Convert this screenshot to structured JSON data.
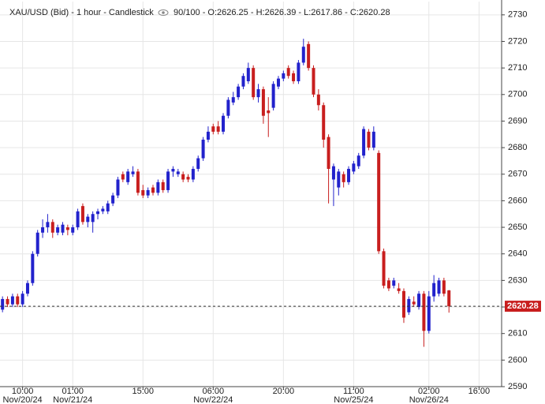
{
  "chart_data": {
    "type": "candlestick",
    "title": "XAU/USD (Bid) - 1 hour - Candlestick",
    "info": "90/100 - O:2626.25 - H:2626.39 - L:2617.86 - C:2620.28",
    "categories": [
      null,
      null,
      null,
      null,
      "10:00",
      null,
      null,
      null,
      null,
      null,
      null,
      null,
      null,
      null,
      "01:00",
      null,
      null,
      null,
      null,
      null,
      null,
      null,
      null,
      null,
      null,
      null,
      null,
      null,
      "15:00",
      null,
      null,
      null,
      null,
      null,
      null,
      null,
      null,
      null,
      null,
      null,
      null,
      null,
      "06:00",
      null,
      null,
      null,
      null,
      null,
      null,
      null,
      null,
      null,
      null,
      null,
      null,
      null,
      "20:00",
      null,
      null,
      null,
      null,
      null,
      null,
      null,
      null,
      null,
      null,
      null,
      null,
      null,
      "11:00",
      null,
      null,
      null,
      null,
      null,
      null,
      null,
      null,
      null,
      null,
      null,
      null,
      null,
      null,
      "02:00",
      null,
      null,
      null,
      null,
      null,
      null,
      null,
      null,
      null,
      "16:00",
      null,
      null,
      null,
      null
    ],
    "category_dates": [
      null,
      null,
      null,
      null,
      "Nov/20/24",
      null,
      null,
      null,
      null,
      null,
      null,
      null,
      null,
      null,
      "Nov/21/24",
      null,
      null,
      null,
      null,
      null,
      null,
      null,
      null,
      null,
      null,
      null,
      null,
      null,
      null,
      null,
      null,
      null,
      null,
      null,
      null,
      null,
      null,
      null,
      null,
      null,
      null,
      null,
      "Nov/22/24",
      null,
      null,
      null,
      null,
      null,
      null,
      null,
      null,
      null,
      null,
      null,
      null,
      null,
      null,
      null,
      null,
      null,
      null,
      null,
      null,
      null,
      null,
      null,
      null,
      null,
      null,
      null,
      "Nov/25/24",
      null,
      null,
      null,
      null,
      null,
      null,
      null,
      null,
      null,
      null,
      null,
      null,
      null,
      null,
      "Nov/26/24",
      null,
      null,
      null,
      null,
      null,
      null,
      null,
      null,
      null,
      null,
      null,
      null,
      null,
      null
    ],
    "open": [
      2619,
      2623,
      2621,
      2624,
      2621,
      2625,
      2629,
      2640,
      2648,
      2650,
      2652,
      2648,
      2648,
      2650,
      2648,
      2650,
      2658,
      2652,
      2652,
      2655,
      2656,
      2656,
      2659,
      2662,
      2670,
      2667,
      2670,
      2671,
      2664,
      2662,
      2665,
      2663,
      2667,
      2664,
      2671,
      2670,
      2670,
      2669,
      2668,
      2672,
      2676,
      2683,
      2688,
      2688,
      2686,
      2692,
      2697,
      2699,
      2703,
      2705,
      2710,
      2699,
      2702,
      2694,
      2695,
      2703,
      2706,
      2710,
      2708,
      2705,
      2712,
      2719,
      2710,
      2700,
      2696,
      2684,
      2668,
      2665,
      2670,
      2667,
      2671,
      2673,
      2677,
      2686,
      2680,
      2678,
      2641,
      2630,
      2628,
      2627,
      2626,
      2618,
      2622,
      2620,
      2625,
      2611,
      2624,
      2625,
      2630,
      2626.25,
      null,
      null,
      null,
      null,
      null,
      null,
      null,
      null,
      null,
      null
    ],
    "high": [
      2624,
      2624,
      2625,
      2625,
      2626,
      2630,
      2641,
      2649,
      2653,
      2655,
      2653,
      2651,
      2652,
      2651,
      2651,
      2657,
      2659,
      2655,
      2656,
      2657,
      2658,
      2660,
      2663,
      2669,
      2671,
      2672,
      2673,
      2672,
      2666,
      2665,
      2666,
      2668,
      2668,
      2672,
      2673,
      2672,
      2671,
      2670,
      2673,
      2677,
      2684,
      2688,
      2689,
      2690,
      2693,
      2699,
      2701,
      2704,
      2708,
      2712,
      2711,
      2704,
      2703,
      2699,
      2705,
      2707,
      2709,
      2711,
      2709,
      2713,
      2721,
      2720,
      2711,
      2702,
      2697,
      2685,
      2674,
      2672,
      2671,
      2673,
      2675,
      2678,
      2688,
      2687,
      2688,
      2679,
      2642,
      2631,
      2631,
      2629,
      2627,
      2624,
      2624,
      2626,
      2626,
      2626,
      2632,
      2631,
      2631,
      2626.39,
      null,
      null,
      null,
      null,
      null,
      null,
      null,
      null,
      null,
      null
    ],
    "low": [
      2618,
      2620,
      2620,
      2620,
      2620,
      2624,
      2628,
      2639,
      2646,
      2648,
      2646,
      2647,
      2647,
      2647,
      2647,
      2649,
      2651,
      2650,
      2648,
      2653,
      2655,
      2655,
      2658,
      2661,
      2667,
      2666,
      2669,
      2662,
      2661,
      2661,
      2662,
      2662,
      2663,
      2663,
      2669,
      2669,
      2667,
      2667,
      2667,
      2671,
      2675,
      2682,
      2685,
      2685,
      2685,
      2691,
      2696,
      2698,
      2702,
      2704,
      2698,
      2697,
      2689,
      2684,
      2694,
      2702,
      2705,
      2706,
      2704,
      2704,
      2711,
      2709,
      2699,
      2694,
      2680,
      2659,
      2658,
      2662,
      2665,
      2666,
      2670,
      2672,
      2676,
      2679,
      2679,
      2640,
      2627,
      2626,
      2627,
      2625,
      2614,
      2617,
      2620,
      2619,
      2605,
      2610,
      2622,
      2624,
      2624,
      2617.86,
      null,
      null,
      null,
      null,
      null,
      null,
      null,
      null,
      null,
      null
    ],
    "close": [
      2623,
      2621,
      2624,
      2621,
      2625,
      2629,
      2640,
      2648,
      2650,
      2652,
      2648,
      2650,
      2651,
      2649,
      2650,
      2656,
      2652,
      2654,
      2655,
      2656,
      2657,
      2659,
      2662,
      2668,
      2668,
      2671,
      2671,
      2663,
      2662,
      2664,
      2663,
      2667,
      2664,
      2671,
      2672,
      2671,
      2668,
      2668,
      2672,
      2676,
      2683,
      2686,
      2686,
      2686,
      2692,
      2698,
      2699,
      2703,
      2707,
      2710,
      2699,
      2702,
      2692,
      2693,
      2704,
      2706,
      2708,
      2707,
      2705,
      2712,
      2718,
      2710,
      2700,
      2696,
      2683,
      2672,
      2673,
      2671,
      2667,
      2672,
      2674,
      2677,
      2687,
      2680,
      2686,
      2641,
      2628,
      2627,
      2630,
      2626,
      2616,
      2623,
      2621,
      2625,
      2611,
      2624,
      2629,
      2630,
      2625,
      2620.28,
      null,
      null,
      null,
      null,
      null,
      null,
      null,
      null,
      null,
      null
    ],
    "up_color": "#2222cc",
    "down_color": "#c81e1e",
    "last_price": 2620.28,
    "ylim": [
      2590,
      2735
    ],
    "yticks": [
      2590,
      2600,
      2610,
      2620,
      2630,
      2640,
      2650,
      2660,
      2670,
      2680,
      2690,
      2700,
      2710,
      2720,
      2730
    ],
    "grid": true
  }
}
